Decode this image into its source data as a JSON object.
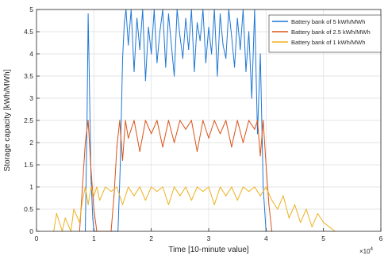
{
  "chart_data": {
    "type": "line",
    "title": "",
    "xlabel": "Time [10-minute value]",
    "ylabel": "Storage capacity [kWh/MWh]",
    "x_exponent_label": "×10",
    "x_exponent_power": "4",
    "xlim": [
      0,
      6
    ],
    "ylim": [
      0,
      5
    ],
    "x_ticks": [
      0,
      1,
      2,
      3,
      4,
      5,
      6
    ],
    "x_tick_labels": [
      "0",
      "1",
      "2",
      "3",
      "4",
      "5",
      "6"
    ],
    "y_ticks": [
      0,
      0.5,
      1,
      1.5,
      2,
      2.5,
      3,
      3.5,
      4,
      4.5,
      5
    ],
    "y_tick_labels": [
      "0",
      "0.5",
      "1",
      "1.5",
      "2",
      "2.5",
      "3",
      "3.5",
      "4",
      "4.5",
      "5"
    ],
    "grid": true,
    "legend_position": "top-right",
    "series": [
      {
        "name": "Battery bank of 5 kWh/MWh",
        "color": "#1f77d4",
        "x": [
          0.85,
          0.88,
          0.9,
          0.92,
          0.95,
          0.98,
          1.0,
          1.42,
          1.46,
          1.5,
          1.53,
          1.56,
          1.6,
          1.65,
          1.7,
          1.75,
          1.8,
          1.85,
          1.9,
          1.95,
          2.0,
          2.05,
          2.1,
          2.15,
          2.2,
          2.25,
          2.3,
          2.35,
          2.4,
          2.45,
          2.5,
          2.55,
          2.6,
          2.65,
          2.7,
          2.75,
          2.8,
          2.85,
          2.9,
          2.95,
          3.0,
          3.05,
          3.1,
          3.15,
          3.2,
          3.25,
          3.3,
          3.35,
          3.4,
          3.45,
          3.5,
          3.55,
          3.6,
          3.65,
          3.7,
          3.75,
          3.8,
          3.85,
          3.9,
          3.95,
          4.0
        ],
        "y": [
          0,
          2.5,
          4.9,
          3.5,
          1.2,
          0.3,
          0,
          0,
          1.5,
          3.9,
          4.7,
          5,
          4.2,
          5,
          3.6,
          4.8,
          4.1,
          5,
          3.4,
          4.6,
          4.0,
          5,
          3.8,
          4.5,
          5,
          3.7,
          4.9,
          4.2,
          3.5,
          5,
          4.4,
          3.9,
          4.8,
          4.1,
          5,
          3.6,
          4.7,
          4.3,
          5,
          3.8,
          4.6,
          4.0,
          5,
          3.5,
          4.9,
          4.2,
          3.9,
          5,
          4.4,
          3.7,
          4.8,
          4.1,
          5,
          3.6,
          4.5,
          3.0,
          5,
          2.2,
          4.0,
          1.0,
          0
        ]
      },
      {
        "name": "Battery bank of 2.5 kWh/MWh",
        "color": "#d95319",
        "x": [
          0.75,
          0.8,
          0.85,
          0.9,
          0.95,
          1.0,
          1.05,
          1.3,
          1.35,
          1.4,
          1.45,
          1.5,
          1.55,
          1.6,
          1.7,
          1.8,
          1.9,
          2.0,
          2.1,
          2.2,
          2.3,
          2.4,
          2.5,
          2.6,
          2.7,
          2.8,
          2.9,
          3.0,
          3.1,
          3.2,
          3.3,
          3.4,
          3.5,
          3.6,
          3.7,
          3.8,
          3.85,
          3.9,
          3.95,
          4.0,
          4.05,
          4.1
        ],
        "y": [
          0,
          1.0,
          2.0,
          2.5,
          1.4,
          0.5,
          0,
          0,
          0.8,
          1.9,
          2.5,
          1.6,
          2.5,
          2.1,
          2.5,
          1.8,
          2.5,
          2.2,
          2.5,
          1.9,
          2.5,
          2.0,
          2.5,
          2.3,
          2.5,
          1.8,
          2.5,
          2.1,
          2.5,
          2.2,
          2.5,
          1.9,
          2.5,
          2.0,
          2.5,
          2.3,
          2.5,
          1.7,
          2.5,
          1.5,
          0.6,
          0
        ]
      },
      {
        "name": "Battery bank of 1 kWh/MWh",
        "color": "#edb120",
        "x": [
          0.3,
          0.35,
          0.45,
          0.5,
          0.6,
          0.65,
          0.75,
          0.8,
          0.85,
          0.9,
          0.95,
          1.0,
          1.05,
          1.1,
          1.2,
          1.3,
          1.4,
          1.5,
          1.6,
          1.7,
          1.8,
          1.9,
          2.0,
          2.1,
          2.2,
          2.3,
          2.4,
          2.5,
          2.6,
          2.7,
          2.8,
          2.9,
          3.0,
          3.1,
          3.2,
          3.3,
          3.4,
          3.5,
          3.6,
          3.7,
          3.8,
          3.9,
          4.0,
          4.1,
          4.2,
          4.3,
          4.4,
          4.5,
          4.6,
          4.7,
          4.8,
          4.9,
          5.0,
          5.1,
          5.2
        ],
        "y": [
          0,
          0.4,
          0,
          0.3,
          0,
          0.5,
          0.2,
          0.7,
          1.0,
          0.6,
          1.0,
          0.8,
          1.0,
          0.7,
          1.0,
          0.9,
          1.0,
          0.6,
          1.0,
          0.8,
          1.0,
          0.7,
          1.0,
          0.9,
          1.0,
          0.6,
          1.0,
          0.8,
          1.0,
          0.7,
          1.0,
          0.9,
          1.0,
          0.6,
          1.0,
          0.8,
          1.0,
          0.7,
          1.0,
          0.9,
          1.0,
          0.8,
          1.0,
          0.7,
          0.5,
          0.8,
          0.3,
          0.6,
          0.2,
          0.5,
          0.1,
          0.4,
          0.2,
          0.1,
          0
        ]
      }
    ]
  }
}
